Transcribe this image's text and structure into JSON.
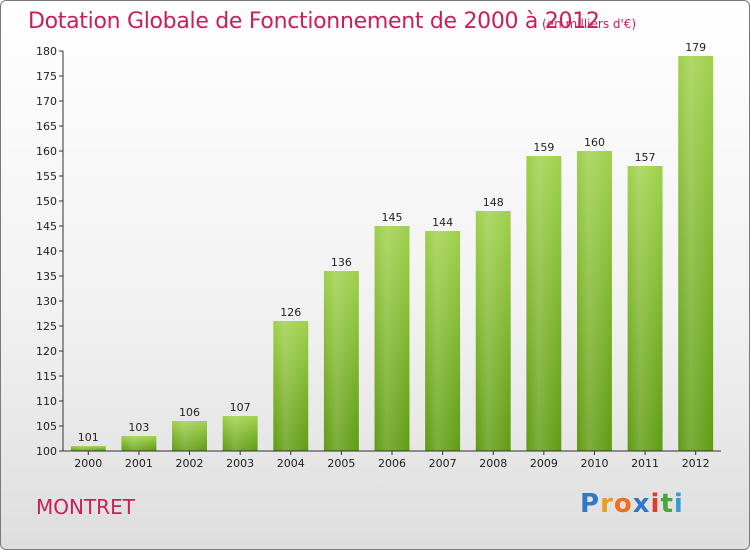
{
  "header": {
    "title": "Dotation Globale de Fonctionnement de 2000 à 2012",
    "unit": "(en milliers d'€)"
  },
  "footer": {
    "commune": "MONTRET",
    "logo_letters": [
      {
        "ch": "P",
        "color": "#2f78c4"
      },
      {
        "ch": "r",
        "color": "#e8a020"
      },
      {
        "ch": "o",
        "color": "#f07020"
      },
      {
        "ch": "x",
        "color": "#2f78c4"
      },
      {
        "ch": "i",
        "color": "#e33a2c"
      },
      {
        "ch": "t",
        "color": "#4aa63a"
      },
      {
        "ch": "i",
        "color": "#3a9ad8"
      }
    ]
  },
  "colors": {
    "title": "#c81e5a",
    "bar_top": "#9ed14b",
    "bar_bottom": "#5f9b12"
  },
  "chart_data": {
    "type": "bar",
    "title": "Dotation Globale de Fonctionnement de 2000 à 2012",
    "subtitle": "(en milliers d'€)",
    "xlabel": "",
    "ylabel": "",
    "categories": [
      "2000",
      "2001",
      "2002",
      "2003",
      "2004",
      "2005",
      "2006",
      "2007",
      "2008",
      "2009",
      "2010",
      "2011",
      "2012"
    ],
    "values": [
      101,
      103,
      106,
      107,
      126,
      136,
      145,
      144,
      148,
      159,
      160,
      157,
      179
    ],
    "ylim": [
      100,
      180
    ],
    "yticks": [
      100,
      105,
      110,
      115,
      120,
      125,
      130,
      135,
      140,
      145,
      150,
      155,
      160,
      165,
      170,
      175,
      180
    ],
    "grid": false,
    "legend": "none"
  }
}
